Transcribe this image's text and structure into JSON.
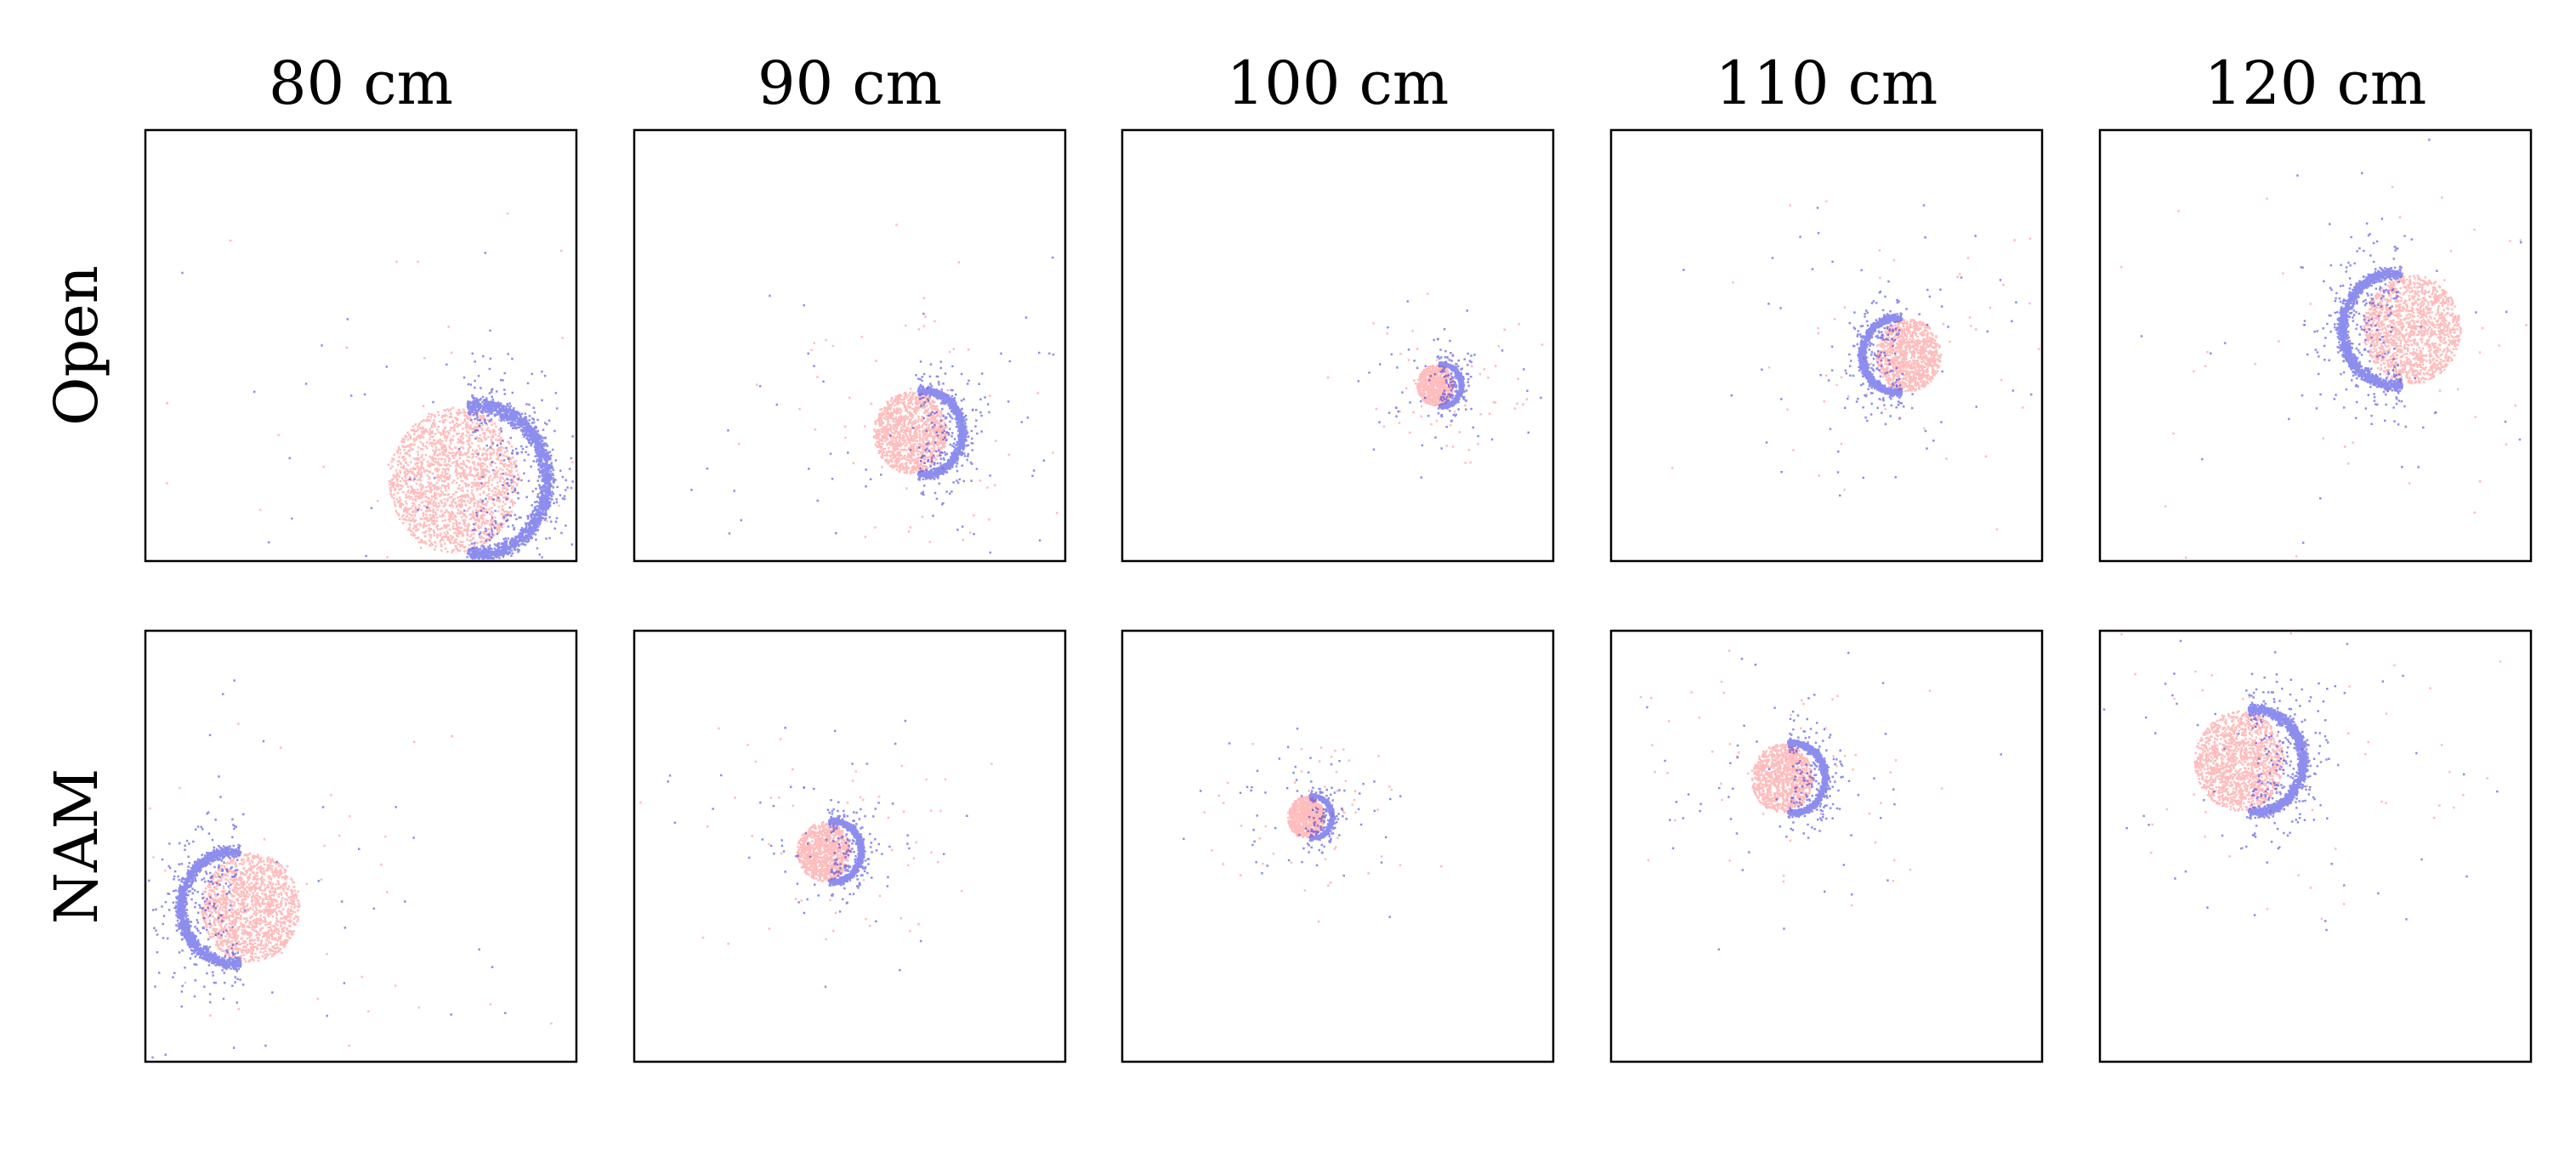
{
  "columns": [
    "80 cm",
    "90 cm",
    "100 cm",
    "110 cm",
    "120 cm"
  ],
  "rows": [
    "Open",
    "NAM"
  ]
}
